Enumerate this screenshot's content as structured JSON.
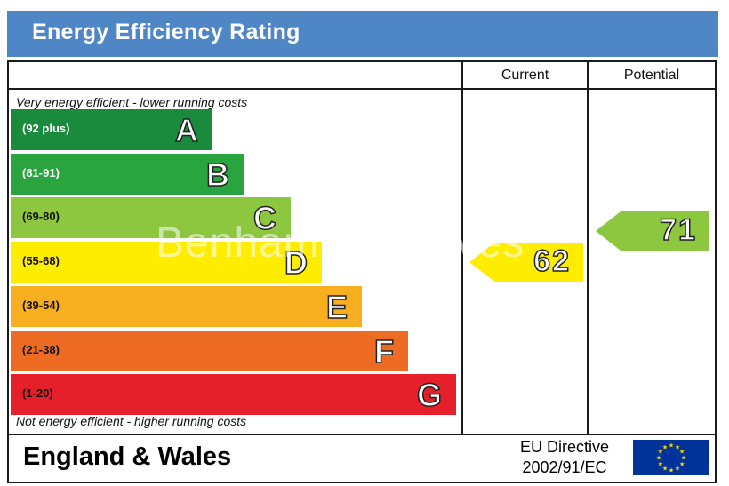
{
  "header": {
    "title": "Energy Efficiency Rating"
  },
  "columns": {
    "current": "Current",
    "potential": "Potential"
  },
  "captions": {
    "top": "Very energy efficient - lower running costs",
    "bottom": "Not energy efficient - higher running costs"
  },
  "bands": [
    {
      "letter": "A",
      "range": "(92 plus)",
      "color": "#1a8a3c",
      "range_color": "#ffffff"
    },
    {
      "letter": "B",
      "range": "(81-91)",
      "color": "#2aa43f",
      "range_color": "#ffffff"
    },
    {
      "letter": "C",
      "range": "(69-80)",
      "color": "#8dc63f",
      "range_color": "#111111"
    },
    {
      "letter": "D",
      "range": "(55-68)",
      "color": "#ffed00",
      "range_color": "#111111"
    },
    {
      "letter": "E",
      "range": "(39-54)",
      "color": "#f7ae1f",
      "range_color": "#111111"
    },
    {
      "letter": "F",
      "range": "(21-38)",
      "color": "#ee6b23",
      "range_color": "#111111"
    },
    {
      "letter": "G",
      "range": "(1-20)",
      "color": "#e5202b",
      "range_color": "#111111"
    }
  ],
  "ratings": {
    "current": {
      "value": "62",
      "band": "D",
      "color": "#ffed00"
    },
    "potential": {
      "value": "71",
      "band": "C",
      "color": "#8dc63f"
    }
  },
  "watermark": "Benham & Reeves",
  "footer": {
    "country": "England & Wales",
    "directive_line1": "EU Directive",
    "directive_line2": "2002/91/EC"
  },
  "flag": {
    "color": "#003399",
    "star_color": "#ffdd00"
  }
}
